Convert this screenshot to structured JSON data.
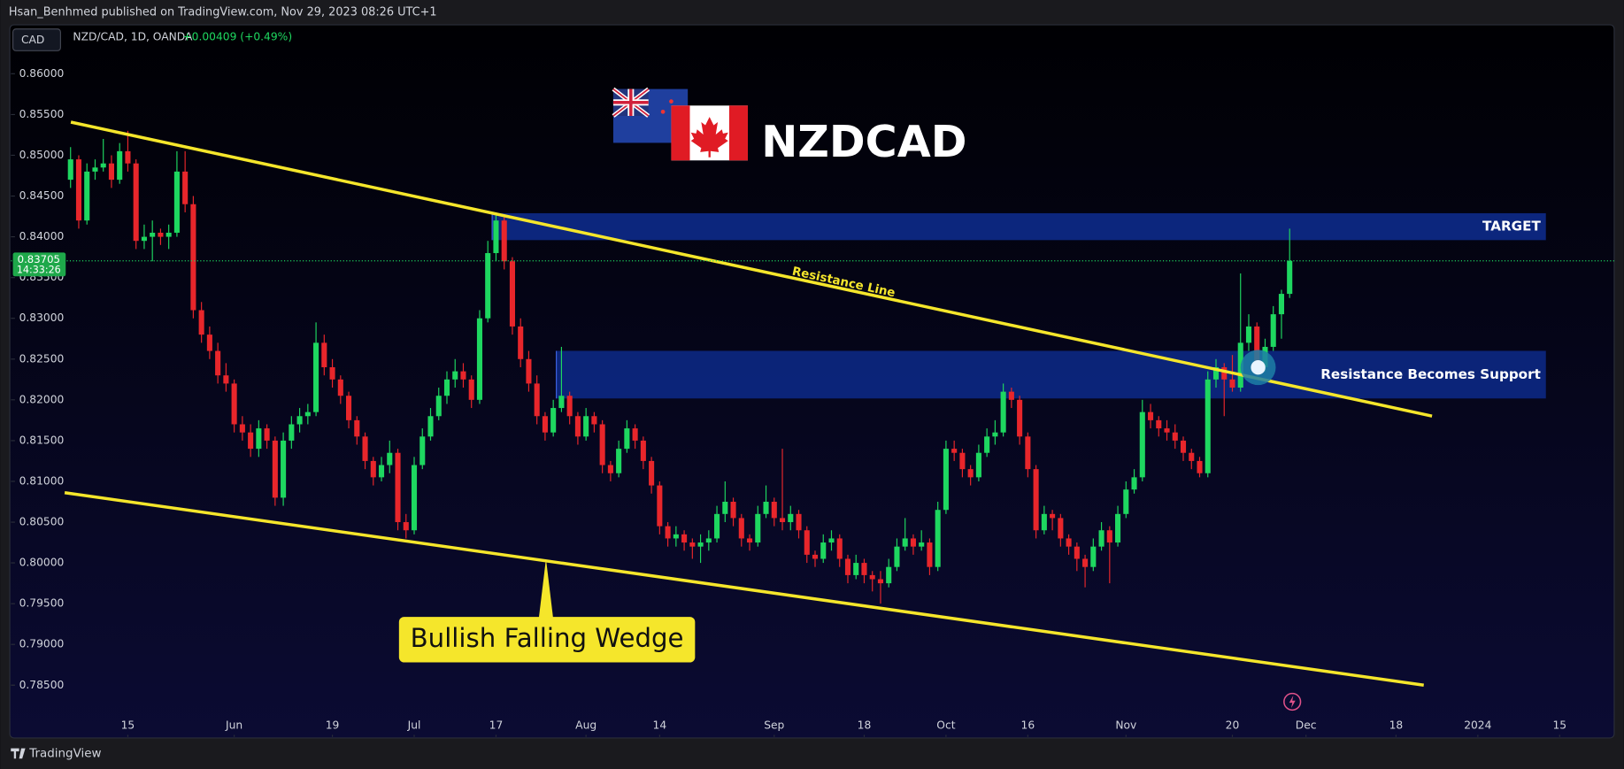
{
  "header": "Hsan_Benhmed published on TradingView.com, Nov 29, 2023 08:26 UTC+1",
  "currency": "CAD",
  "symbol": "NZD/CAD, 1D, OANDA",
  "change": "+0.00409 (+0.49%)",
  "footer": "TradingView",
  "chart_data": {
    "type": "candlestick",
    "title": "NZDCAD",
    "annotations": [
      "Resistance Line",
      "TARGET",
      "Resistance Becomes Support",
      "Bullish Falling Wedge"
    ],
    "last_price": 0.83705,
    "countdown": "14:33:26",
    "up_color": "#1ed760",
    "down_color": "#e8262b",
    "ylim": [
      0.7817,
      0.866
    ],
    "yticks": [
      {
        "value": 0.86,
        "label": "0.86000"
      },
      {
        "value": 0.855,
        "label": "0.85500"
      },
      {
        "value": 0.85,
        "label": "0.85000"
      },
      {
        "value": 0.845,
        "label": "0.84500"
      },
      {
        "value": 0.84,
        "label": "0.84000"
      },
      {
        "value": 0.835,
        "label": "0.83500"
      },
      {
        "value": 0.83,
        "label": "0.83000"
      },
      {
        "value": 0.825,
        "label": "0.82500"
      },
      {
        "value": 0.82,
        "label": "0.82000"
      },
      {
        "value": 0.815,
        "label": "0.81500"
      },
      {
        "value": 0.81,
        "label": "0.81000"
      },
      {
        "value": 0.805,
        "label": "0.80500"
      },
      {
        "value": 0.8,
        "label": "0.80000"
      },
      {
        "value": 0.795,
        "label": "0.79500"
      },
      {
        "value": 0.79,
        "label": "0.79000"
      },
      {
        "value": 0.785,
        "label": "0.78500"
      }
    ],
    "xlim": [
      -7.3,
      185
    ],
    "xticks": [
      {
        "value": 7,
        "label": "15"
      },
      {
        "value": 20,
        "label": "Jun"
      },
      {
        "value": 32,
        "label": "19"
      },
      {
        "value": 42,
        "label": "Jul"
      },
      {
        "value": 52,
        "label": "17"
      },
      {
        "value": 63,
        "label": "Aug"
      },
      {
        "value": 72,
        "label": "14"
      },
      {
        "value": 86,
        "label": "Sep"
      },
      {
        "value": 97,
        "label": "18"
      },
      {
        "value": 107,
        "label": "Oct"
      },
      {
        "value": 117,
        "label": "16"
      },
      {
        "value": 129,
        "label": "Nov"
      },
      {
        "value": 142,
        "label": "20"
      },
      {
        "value": 151,
        "label": "Dec"
      },
      {
        "value": 162,
        "label": "18"
      },
      {
        "value": 172,
        "label": "2024"
      },
      {
        "value": 182,
        "label": "15"
      }
    ],
    "candles": [
      [
        0.847,
        0.851,
        0.846,
        0.8495
      ],
      [
        0.8495,
        0.85,
        0.841,
        0.842
      ],
      [
        0.842,
        0.849,
        0.8415,
        0.848
      ],
      [
        0.848,
        0.8495,
        0.847,
        0.8485
      ],
      [
        0.8485,
        0.852,
        0.848,
        0.849
      ],
      [
        0.849,
        0.85,
        0.846,
        0.847
      ],
      [
        0.847,
        0.8515,
        0.8465,
        0.8505
      ],
      [
        0.8505,
        0.853,
        0.848,
        0.849
      ],
      [
        0.849,
        0.8495,
        0.8385,
        0.8395
      ],
      [
        0.8395,
        0.8415,
        0.8385,
        0.84
      ],
      [
        0.84,
        0.842,
        0.837,
        0.8405
      ],
      [
        0.8405,
        0.841,
        0.839,
        0.84
      ],
      [
        0.84,
        0.8415,
        0.8385,
        0.8405
      ],
      [
        0.8405,
        0.8505,
        0.84,
        0.848
      ],
      [
        0.848,
        0.8505,
        0.843,
        0.844
      ],
      [
        0.844,
        0.845,
        0.83,
        0.831
      ],
      [
        0.831,
        0.832,
        0.827,
        0.828
      ],
      [
        0.828,
        0.829,
        0.825,
        0.826
      ],
      [
        0.826,
        0.827,
        0.822,
        0.823
      ],
      [
        0.823,
        0.8245,
        0.821,
        0.822
      ],
      [
        0.822,
        0.8225,
        0.816,
        0.817
      ],
      [
        0.817,
        0.818,
        0.815,
        0.816
      ],
      [
        0.816,
        0.817,
        0.813,
        0.814
      ],
      [
        0.814,
        0.8175,
        0.813,
        0.8165
      ],
      [
        0.8165,
        0.817,
        0.814,
        0.815
      ],
      [
        0.815,
        0.8155,
        0.807,
        0.808
      ],
      [
        0.808,
        0.816,
        0.807,
        0.815
      ],
      [
        0.815,
        0.818,
        0.814,
        0.817
      ],
      [
        0.817,
        0.819,
        0.816,
        0.818
      ],
      [
        0.818,
        0.8195,
        0.817,
        0.8185
      ],
      [
        0.8185,
        0.8295,
        0.818,
        0.827
      ],
      [
        0.827,
        0.828,
        0.823,
        0.824
      ],
      [
        0.824,
        0.825,
        0.8215,
        0.8225
      ],
      [
        0.8225,
        0.823,
        0.8195,
        0.8205
      ],
      [
        0.8205,
        0.821,
        0.8165,
        0.8175
      ],
      [
        0.8175,
        0.818,
        0.8145,
        0.8155
      ],
      [
        0.8155,
        0.816,
        0.8115,
        0.8125
      ],
      [
        0.8125,
        0.813,
        0.8095,
        0.8105
      ],
      [
        0.8105,
        0.813,
        0.81,
        0.812
      ],
      [
        0.812,
        0.815,
        0.811,
        0.8135
      ],
      [
        0.8135,
        0.814,
        0.804,
        0.805
      ],
      [
        0.805,
        0.806,
        0.803,
        0.804
      ],
      [
        0.804,
        0.813,
        0.8035,
        0.812
      ],
      [
        0.812,
        0.8165,
        0.8115,
        0.8155
      ],
      [
        0.8155,
        0.819,
        0.815,
        0.818
      ],
      [
        0.818,
        0.8215,
        0.8175,
        0.8205
      ],
      [
        0.8205,
        0.8235,
        0.8195,
        0.8225
      ],
      [
        0.8225,
        0.825,
        0.8215,
        0.8235
      ],
      [
        0.8235,
        0.8245,
        0.8215,
        0.8225
      ],
      [
        0.8225,
        0.823,
        0.819,
        0.82
      ],
      [
        0.82,
        0.831,
        0.8195,
        0.83
      ],
      [
        0.83,
        0.8395,
        0.8295,
        0.838
      ],
      [
        0.838,
        0.843,
        0.837,
        0.842
      ],
      [
        0.842,
        0.8425,
        0.836,
        0.837
      ],
      [
        0.837,
        0.8375,
        0.828,
        0.829
      ],
      [
        0.829,
        0.83,
        0.824,
        0.825
      ],
      [
        0.825,
        0.826,
        0.821,
        0.822
      ],
      [
        0.822,
        0.823,
        0.817,
        0.818
      ],
      [
        0.818,
        0.8185,
        0.815,
        0.816
      ],
      [
        0.816,
        0.82,
        0.8155,
        0.819
      ],
      [
        0.819,
        0.8265,
        0.8185,
        0.8205
      ],
      [
        0.8205,
        0.821,
        0.817,
        0.818
      ],
      [
        0.818,
        0.8185,
        0.8145,
        0.8155
      ],
      [
        0.8155,
        0.819,
        0.815,
        0.818
      ],
      [
        0.818,
        0.8185,
        0.816,
        0.817
      ],
      [
        0.817,
        0.8175,
        0.811,
        0.812
      ],
      [
        0.812,
        0.8125,
        0.81,
        0.811
      ],
      [
        0.811,
        0.815,
        0.8105,
        0.814
      ],
      [
        0.814,
        0.8175,
        0.8135,
        0.8165
      ],
      [
        0.8165,
        0.817,
        0.814,
        0.815
      ],
      [
        0.815,
        0.8155,
        0.8115,
        0.8125
      ],
      [
        0.8125,
        0.813,
        0.8085,
        0.8095
      ],
      [
        0.8095,
        0.81,
        0.8035,
        0.8045
      ],
      [
        0.8045,
        0.805,
        0.802,
        0.803
      ],
      [
        0.803,
        0.8045,
        0.802,
        0.8035
      ],
      [
        0.8035,
        0.804,
        0.8015,
        0.8025
      ],
      [
        0.8025,
        0.803,
        0.8005,
        0.802
      ],
      [
        0.802,
        0.8035,
        0.8,
        0.8025
      ],
      [
        0.8025,
        0.804,
        0.8015,
        0.803
      ],
      [
        0.803,
        0.807,
        0.8025,
        0.806
      ],
      [
        0.806,
        0.81,
        0.805,
        0.8075
      ],
      [
        0.8075,
        0.808,
        0.8045,
        0.8055
      ],
      [
        0.8055,
        0.806,
        0.802,
        0.803
      ],
      [
        0.803,
        0.8035,
        0.8015,
        0.8025
      ],
      [
        0.8025,
        0.807,
        0.802,
        0.806
      ],
      [
        0.806,
        0.8095,
        0.8055,
        0.8075
      ],
      [
        0.8075,
        0.808,
        0.8045,
        0.8055
      ],
      [
        0.8055,
        0.814,
        0.804,
        0.805
      ],
      [
        0.805,
        0.807,
        0.804,
        0.806
      ],
      [
        0.806,
        0.8065,
        0.803,
        0.804
      ],
      [
        0.804,
        0.8045,
        0.8,
        0.801
      ],
      [
        0.801,
        0.8015,
        0.7995,
        0.8005
      ],
      [
        0.8005,
        0.8035,
        0.8,
        0.8025
      ],
      [
        0.8025,
        0.804,
        0.8015,
        0.803
      ],
      [
        0.803,
        0.8035,
        0.7995,
        0.8005
      ],
      [
        0.8005,
        0.801,
        0.7975,
        0.7985
      ],
      [
        0.7985,
        0.801,
        0.798,
        0.8
      ],
      [
        0.8,
        0.8005,
        0.7975,
        0.7985
      ],
      [
        0.7985,
        0.799,
        0.7965,
        0.798
      ],
      [
        0.798,
        0.799,
        0.795,
        0.7975
      ],
      [
        0.7975,
        0.8005,
        0.797,
        0.7995
      ],
      [
        0.7995,
        0.803,
        0.799,
        0.802
      ],
      [
        0.802,
        0.8055,
        0.8015,
        0.803
      ],
      [
        0.803,
        0.8035,
        0.801,
        0.802
      ],
      [
        0.802,
        0.804,
        0.8015,
        0.8025
      ],
      [
        0.8025,
        0.803,
        0.7985,
        0.7995
      ],
      [
        0.7995,
        0.8075,
        0.799,
        0.8065
      ],
      [
        0.8065,
        0.815,
        0.806,
        0.814
      ],
      [
        0.814,
        0.815,
        0.8125,
        0.8135
      ],
      [
        0.8135,
        0.814,
        0.8105,
        0.8115
      ],
      [
        0.8115,
        0.812,
        0.8095,
        0.8105
      ],
      [
        0.8105,
        0.8145,
        0.81,
        0.8135
      ],
      [
        0.8135,
        0.8165,
        0.813,
        0.8155
      ],
      [
        0.8155,
        0.8175,
        0.8145,
        0.816
      ],
      [
        0.816,
        0.822,
        0.8155,
        0.821
      ],
      [
        0.821,
        0.8215,
        0.819,
        0.82
      ],
      [
        0.82,
        0.8205,
        0.8145,
        0.8155
      ],
      [
        0.8155,
        0.816,
        0.8105,
        0.8115
      ],
      [
        0.8115,
        0.812,
        0.803,
        0.804
      ],
      [
        0.804,
        0.807,
        0.8035,
        0.806
      ],
      [
        0.806,
        0.8065,
        0.804,
        0.8055
      ],
      [
        0.8055,
        0.806,
        0.802,
        0.803
      ],
      [
        0.803,
        0.8035,
        0.801,
        0.802
      ],
      [
        0.802,
        0.8025,
        0.799,
        0.8005
      ],
      [
        0.8005,
        0.801,
        0.797,
        0.7995
      ],
      [
        0.7995,
        0.803,
        0.799,
        0.802
      ],
      [
        0.802,
        0.805,
        0.8015,
        0.804
      ],
      [
        0.804,
        0.8045,
        0.7975,
        0.8025
      ],
      [
        0.8025,
        0.807,
        0.802,
        0.806
      ],
      [
        0.806,
        0.81,
        0.8055,
        0.809
      ],
      [
        0.809,
        0.8115,
        0.8085,
        0.8105
      ],
      [
        0.8105,
        0.82,
        0.81,
        0.8185
      ],
      [
        0.8185,
        0.8195,
        0.8165,
        0.8175
      ],
      [
        0.8175,
        0.818,
        0.8155,
        0.8165
      ],
      [
        0.8165,
        0.8175,
        0.815,
        0.816
      ],
      [
        0.816,
        0.817,
        0.814,
        0.815
      ],
      [
        0.815,
        0.8155,
        0.8125,
        0.8135
      ],
      [
        0.8135,
        0.814,
        0.8115,
        0.8125
      ],
      [
        0.8125,
        0.813,
        0.8105,
        0.811
      ],
      [
        0.811,
        0.8235,
        0.8105,
        0.8225
      ],
      [
        0.8225,
        0.825,
        0.8215,
        0.824
      ],
      [
        0.824,
        0.8245,
        0.818,
        0.8225
      ],
      [
        0.8225,
        0.8255,
        0.821,
        0.8215
      ],
      [
        0.8215,
        0.8355,
        0.821,
        0.827
      ],
      [
        0.827,
        0.8305,
        0.826,
        0.829
      ],
      [
        0.829,
        0.8295,
        0.823,
        0.824
      ],
      [
        0.824,
        0.8275,
        0.8235,
        0.8265
      ],
      [
        0.8265,
        0.8315,
        0.826,
        0.8305
      ],
      [
        0.8305,
        0.8335,
        0.8275,
        0.833
      ],
      [
        0.833,
        0.841,
        0.8325,
        0.83705
      ]
    ]
  }
}
